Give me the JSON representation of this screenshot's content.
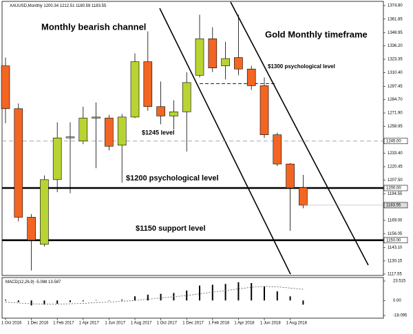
{
  "chart_data": {
    "type": "candlestick",
    "symbol": "XAUUSD,Monthly",
    "categories": [
      "1 Oct 2016",
      null,
      "1 Dec 2016",
      null,
      "1 Feb 2017",
      null,
      "1 Apr 2017",
      null,
      "1 Jun 2017",
      null,
      "1 Aug 2017",
      null,
      "1 Oct 2017",
      null,
      "1 Dec 2017",
      null,
      "1 Feb 2018",
      null,
      "1 Apr 2018",
      null,
      "1 Jun 2018",
      null,
      "1 Aug 2018",
      null
    ],
    "open": [
      1317,
      1276,
      1172,
      1146,
      1208,
      1248,
      1245,
      1267,
      1267,
      1241,
      1268,
      1321,
      1278,
      1269,
      1273,
      1308,
      1343,
      1317,
      1325,
      1314,
      1298,
      1251,
      1223,
      1200.34
    ],
    "high": [
      1325,
      1281,
      1175,
      1212,
      1263,
      1263,
      1278,
      1282,
      1270,
      1271,
      1329,
      1350,
      1302,
      1284,
      1311,
      1366,
      1354,
      1340,
      1366,
      1317,
      1306,
      1253,
      1224,
      1212.51
    ],
    "low": [
      1262,
      1168,
      1121,
      1144,
      1196,
      1195,
      1242,
      1219,
      1236,
      1205,
      1267,
      1274,
      1261,
      1256,
      1235,
      1306,
      1311,
      1304,
      1308,
      1294,
      1248,
      1221,
      1159,
      1180.59
    ],
    "close": [
      1276,
      1172,
      1150,
      1208,
      1248,
      1249,
      1267,
      1268,
      1240,
      1268,
      1321,
      1278,
      1269,
      1273,
      1301,
      1343,
      1315,
      1324,
      1314,
      1298,
      1251,
      1223,
      1200,
      1183.55
    ],
    "up_color": "#b8d432",
    "down_color": "#f26522",
    "ylim": [
      1116.2,
      1378.8
    ],
    "yticks": [
      {
        "value": 1374.8,
        "label": "1374.80"
      },
      1361.85,
      1348.95,
      {
        "value": 1336.2,
        "label": "1336.20"
      },
      1323.35,
      {
        "value": 1310.4,
        "label": "1310.40"
      },
      1297.45,
      {
        "value": 1284.7,
        "label": "1284.70"
      },
      {
        "value": 1271.9,
        "label": "1271.90"
      },
      1258.95,
      {
        "value": 1233.4,
        "label": "1233.40"
      },
      1220.45,
      {
        "value": 1207.5,
        "label": "1207.50"
      },
      1194.55,
      {
        "value": 1169,
        "label": "1169.00"
      },
      1156.05,
      {
        "value": 1143.1,
        "label": "1143.10"
      },
      1130.15,
      1117.55
    ],
    "levels": [
      {
        "value": 1300,
        "style": "short-dash"
      },
      {
        "value": 1245,
        "label": "1245.00",
        "style": "dash"
      },
      {
        "value": 1200,
        "label": "1200.00",
        "style": "thick"
      },
      {
        "value": 1150,
        "label": "1150.00",
        "style": "thick"
      }
    ],
    "annotations": [
      "Monthly bearish channel",
      "Gold Monthly timeframe",
      "$1300 psychological level",
      "$1245 level",
      "$1200 psychological level",
      "$1150 support level"
    ],
    "macd": {
      "name": "MACD(12,26,9)",
      "histogram": [
        1,
        -2,
        -6,
        -5,
        -4,
        -2,
        -1,
        0.5,
        0,
        1,
        5,
        7,
        8,
        9,
        12,
        18,
        19,
        20,
        22,
        21,
        17,
        11,
        5,
        -5.088
      ],
      "signal": [
        -2,
        -3,
        -4,
        -4.5,
        -4.5,
        -4,
        -3.5,
        -2.5,
        -2,
        -1,
        0,
        1.5,
        3,
        4.5,
        6,
        8,
        10,
        12,
        14,
        16,
        17,
        16.5,
        15,
        13.587
      ],
      "ylim": [
        -21.4,
        27.7
      ],
      "yticks": [
        23.515,
        {
          "value": 0,
          "label": "0.00"
        },
        -18.095
      ]
    }
  }
}
